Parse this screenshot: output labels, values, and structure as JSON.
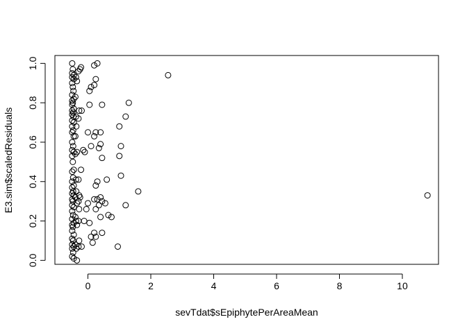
{
  "chart_data": {
    "type": "scatter",
    "title": "",
    "xlabel": "sevTdat$sEpiphytePerAreaMean",
    "ylabel": "E3.sim$scaledResiduals",
    "xlim": [
      -1.05,
      11.15
    ],
    "ylim": [
      -0.02,
      1.04
    ],
    "x_ticks": [
      0,
      2,
      4,
      6,
      8,
      10
    ],
    "x_tick_labels": [
      "0",
      "2",
      "4",
      "6",
      "8",
      "10"
    ],
    "y_ticks": [
      0.0,
      0.2,
      0.4,
      0.6,
      0.8,
      1.0
    ],
    "y_tick_labels": [
      "0.0",
      "0.2",
      "0.4",
      "0.6",
      "0.8",
      "1.0"
    ],
    "grid": false,
    "marker": "open-circle",
    "points": [
      [
        -0.5,
        1.0
      ],
      [
        -0.48,
        0.97
      ],
      [
        -0.5,
        0.95
      ],
      [
        -0.45,
        0.94
      ],
      [
        -0.5,
        0.93
      ],
      [
        -0.45,
        0.92
      ],
      [
        -0.5,
        0.9
      ],
      [
        -0.48,
        0.88
      ],
      [
        -0.46,
        0.86
      ],
      [
        -0.5,
        0.84
      ],
      [
        -0.45,
        0.82
      ],
      [
        -0.5,
        0.81
      ],
      [
        -0.48,
        0.8
      ],
      [
        -0.5,
        0.79
      ],
      [
        -0.45,
        0.77
      ],
      [
        -0.5,
        0.76
      ],
      [
        -0.47,
        0.75
      ],
      [
        -0.5,
        0.74
      ],
      [
        -0.46,
        0.73
      ],
      [
        -0.5,
        0.71
      ],
      [
        -0.45,
        0.7
      ],
      [
        -0.5,
        0.68
      ],
      [
        -0.47,
        0.66
      ],
      [
        -0.5,
        0.65
      ],
      [
        -0.45,
        0.63
      ],
      [
        -0.5,
        0.6
      ],
      [
        -0.47,
        0.58
      ],
      [
        -0.5,
        0.56
      ],
      [
        -0.45,
        0.55
      ],
      [
        -0.5,
        0.53
      ],
      [
        -0.48,
        0.5
      ],
      [
        -0.45,
        0.46
      ],
      [
        -0.5,
        0.45
      ],
      [
        -0.47,
        0.42
      ],
      [
        -0.5,
        0.4
      ],
      [
        -0.45,
        0.38
      ],
      [
        -0.5,
        0.37
      ],
      [
        -0.47,
        0.35
      ],
      [
        -0.5,
        0.34
      ],
      [
        -0.45,
        0.33
      ],
      [
        -0.5,
        0.31
      ],
      [
        -0.48,
        0.3
      ],
      [
        -0.5,
        0.28
      ],
      [
        -0.45,
        0.27
      ],
      [
        -0.5,
        0.25
      ],
      [
        -0.47,
        0.23
      ],
      [
        -0.5,
        0.21
      ],
      [
        -0.45,
        0.19
      ],
      [
        -0.5,
        0.18
      ],
      [
        -0.48,
        0.17
      ],
      [
        -0.5,
        0.15
      ],
      [
        -0.45,
        0.13
      ],
      [
        -0.5,
        0.11
      ],
      [
        -0.47,
        0.1
      ],
      [
        -0.5,
        0.08
      ],
      [
        -0.45,
        0.07
      ],
      [
        -0.5,
        0.06
      ],
      [
        -0.47,
        0.04
      ],
      [
        -0.5,
        0.02
      ],
      [
        -0.45,
        0.01
      ],
      [
        -0.38,
        0.93
      ],
      [
        -0.35,
        0.91
      ],
      [
        -0.4,
        0.83
      ],
      [
        -0.38,
        0.73
      ],
      [
        -0.37,
        0.68
      ],
      [
        -0.4,
        0.63
      ],
      [
        -0.35,
        0.55
      ],
      [
        -0.4,
        0.54
      ],
      [
        -0.38,
        0.41
      ],
      [
        -0.37,
        0.35
      ],
      [
        -0.4,
        0.32
      ],
      [
        -0.35,
        0.29
      ],
      [
        -0.4,
        0.22
      ],
      [
        -0.38,
        0.2
      ],
      [
        -0.35,
        0.18
      ],
      [
        -0.4,
        0.08
      ],
      [
        -0.37,
        0.06
      ],
      [
        -0.35,
        0.0
      ],
      [
        -0.3,
        0.96
      ],
      [
        -0.28,
        0.76
      ],
      [
        -0.3,
        0.72
      ],
      [
        -0.3,
        0.41
      ],
      [
        -0.28,
        0.33
      ],
      [
        -0.3,
        0.3
      ],
      [
        -0.28,
        0.26
      ],
      [
        -0.3,
        0.2
      ],
      [
        -0.28,
        0.1
      ],
      [
        -0.3,
        0.07
      ],
      [
        -0.22,
        0.98
      ],
      [
        -0.25,
        0.97
      ],
      [
        -0.2,
        0.76
      ],
      [
        -0.22,
        0.46
      ],
      [
        -0.25,
        0.32
      ],
      [
        -0.2,
        0.07
      ],
      [
        -0.15,
        0.56
      ],
      [
        -0.1,
        0.55
      ],
      [
        -0.05,
        0.26
      ],
      [
        -0.12,
        0.2
      ],
      [
        0.0,
        0.65
      ],
      [
        0.05,
        0.79
      ],
      [
        0.05,
        0.86
      ],
      [
        0.1,
        0.88
      ],
      [
        0.1,
        0.58
      ],
      [
        0.0,
        0.29
      ],
      [
        0.05,
        0.19
      ],
      [
        0.1,
        0.12
      ],
      [
        0.15,
        0.09
      ],
      [
        0.2,
        0.99
      ],
      [
        0.25,
        0.92
      ],
      [
        0.2,
        0.89
      ],
      [
        0.3,
        1.0
      ],
      [
        0.25,
        0.65
      ],
      [
        0.2,
        0.63
      ],
      [
        0.3,
        0.4
      ],
      [
        0.25,
        0.38
      ],
      [
        0.2,
        0.31
      ],
      [
        0.3,
        0.31
      ],
      [
        0.25,
        0.26
      ],
      [
        0.2,
        0.14
      ],
      [
        0.25,
        0.12
      ],
      [
        0.4,
        0.65
      ],
      [
        0.45,
        0.79
      ],
      [
        0.4,
        0.59
      ],
      [
        0.35,
        0.57
      ],
      [
        0.45,
        0.52
      ],
      [
        0.4,
        0.32
      ],
      [
        0.45,
        0.3
      ],
      [
        0.35,
        0.28
      ],
      [
        0.4,
        0.22
      ],
      [
        0.45,
        0.14
      ],
      [
        0.6,
        0.41
      ],
      [
        0.55,
        0.29
      ],
      [
        0.65,
        0.23
      ],
      [
        0.75,
        0.22
      ],
      [
        1.0,
        0.68
      ],
      [
        1.05,
        0.58
      ],
      [
        1.0,
        0.53
      ],
      [
        1.05,
        0.43
      ],
      [
        0.95,
        0.07
      ],
      [
        1.2,
        0.73
      ],
      [
        1.3,
        0.8
      ],
      [
        1.2,
        0.28
      ],
      [
        1.6,
        0.35
      ],
      [
        2.55,
        0.94
      ],
      [
        10.8,
        0.33
      ]
    ]
  }
}
